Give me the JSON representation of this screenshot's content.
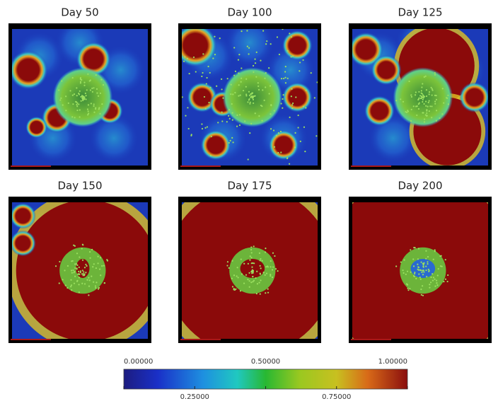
{
  "panels": [
    {
      "title": "Day 50"
    },
    {
      "title": "Day 100"
    },
    {
      "title": "Day 125"
    },
    {
      "title": "Day 150"
    },
    {
      "title": "Day 175"
    },
    {
      "title": "Day 200"
    }
  ],
  "colorbar": {
    "clim": [
      0,
      1
    ],
    "ticks": [
      {
        "value": 0,
        "label": "0.00000"
      },
      {
        "value": 0.25,
        "label": "0.25000"
      },
      {
        "value": 0.5,
        "label": "0.50000"
      },
      {
        "value": 0.75,
        "label": "0.75000"
      },
      {
        "value": 1,
        "label": "1.00000"
      }
    ]
  }
}
